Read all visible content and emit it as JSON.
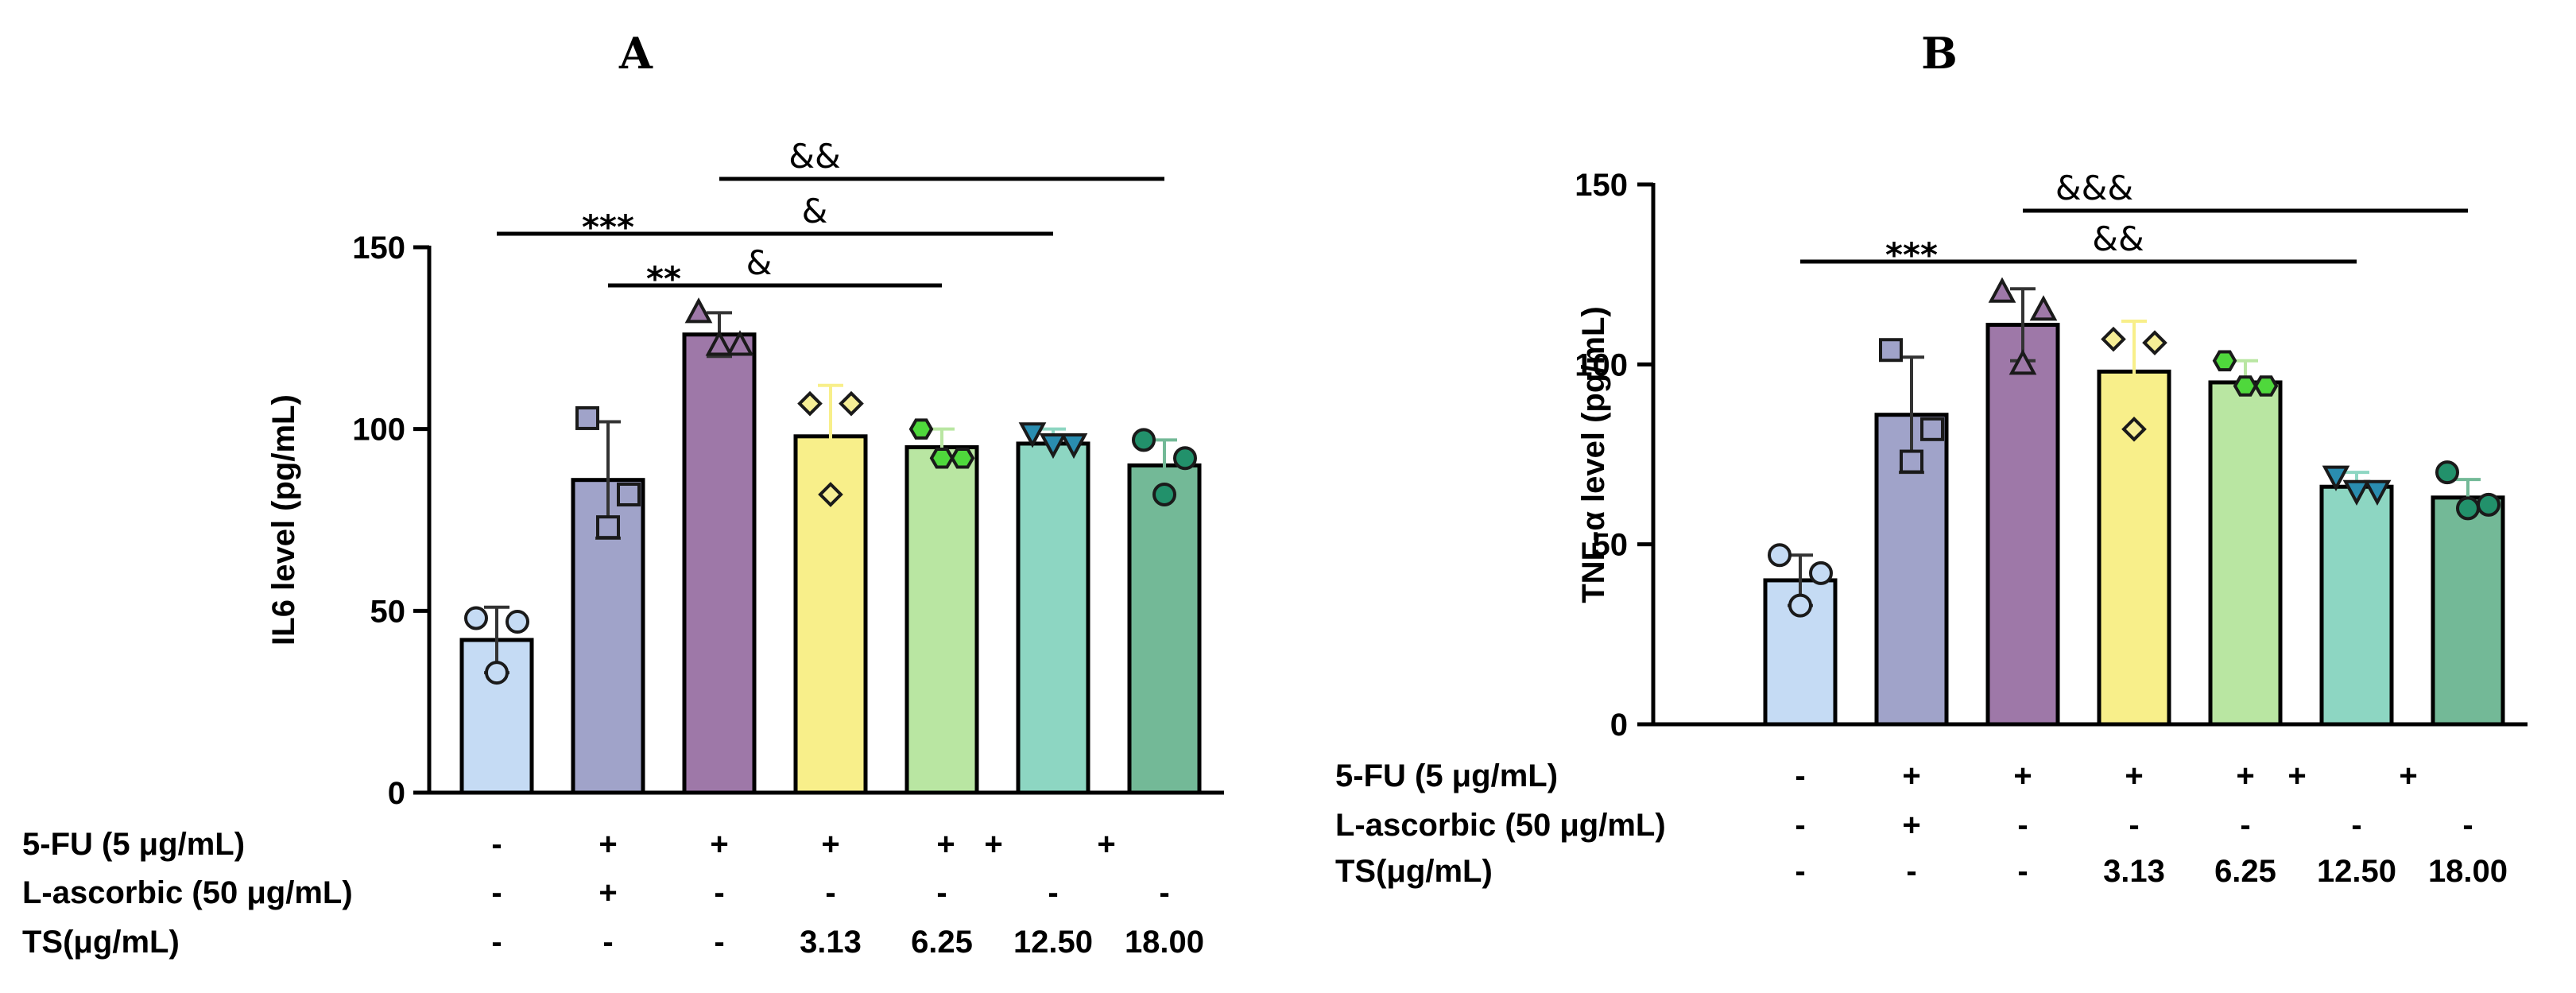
{
  "chart_data": [
    {
      "type": "bar",
      "panel": "A",
      "ylabel": "IL6 level (pg/mL)",
      "ylim": [
        0,
        150
      ],
      "yticks": [
        "0",
        "50",
        "100",
        "150"
      ],
      "groups": [
        {
          "fill": "#c5dbf4",
          "dot_fill": "#c5dbf4",
          "marker": "circle",
          "mean": 42,
          "sd": 9,
          "points": [
            48,
            47,
            33
          ]
        },
        {
          "fill": "#a0a3c9",
          "dot_fill": "#a0a3c9",
          "marker": "square",
          "mean": 86,
          "sd": 16,
          "points": [
            103,
            82,
            73
          ]
        },
        {
          "fill": "#9e78a8",
          "dot_fill": "#9e78a8",
          "marker": "triangle",
          "mean": 126,
          "sd": 6,
          "points": [
            132,
            123,
            123
          ]
        },
        {
          "fill": "#f8ef8a",
          "dot_fill": "#f6ee96",
          "marker": "diamond",
          "mean": 98,
          "sd": 14,
          "points": [
            107,
            107,
            82
          ]
        },
        {
          "fill": "#b9e6a2",
          "dot_fill": "#4fd83c",
          "marker": "hexagon",
          "mean": 95,
          "sd": 5,
          "points": [
            100,
            92,
            92
          ]
        },
        {
          "fill": "#8dd6c2",
          "dot_fill": "#2a8db0",
          "marker": "tridown",
          "mean": 96,
          "sd": 4,
          "points": [
            99,
            96,
            96
          ]
        },
        {
          "fill": "#73b997",
          "dot_fill": "#22916b",
          "marker": "circle",
          "mean": 90,
          "sd": 7,
          "points": [
            97,
            92,
            82
          ]
        }
      ],
      "significance": [
        {
          "label": "&&",
          "from": 2,
          "to": 6
        },
        {
          "label": "***",
          "from": 0,
          "to": 2
        },
        {
          "label": "&",
          "from": 2,
          "to": 5
        },
        {
          "label": "**",
          "from": 1,
          "to": 2
        },
        {
          "label": "&",
          "from": 2,
          "to": 4
        }
      ],
      "table": {
        "row_labels": [
          "5-FU (5 μg/mL)",
          "L-ascorbic (50 μg/mL)",
          "TS(μg/mL)"
        ],
        "rows": [
          [
            "-",
            "+",
            "+",
            "+",
            "+ +",
            "+",
            ""
          ],
          [
            "-",
            "+",
            "-",
            "-",
            "-",
            "-",
            "-"
          ],
          [
            "-",
            "-",
            "-",
            "3.13",
            "6.25",
            "12.50",
            "18.00"
          ]
        ]
      }
    },
    {
      "type": "bar",
      "panel": "B",
      "ylabel": "TNF-α level (pg/mL)",
      "ylim": [
        0,
        150
      ],
      "yticks": [
        "0",
        "50",
        "100",
        "150"
      ],
      "groups": [
        {
          "fill": "#c5dbf4",
          "dot_fill": "#c5dbf4",
          "marker": "circle",
          "mean": 40,
          "sd": 7,
          "points": [
            47,
            42,
            33
          ]
        },
        {
          "fill": "#a0a3c9",
          "dot_fill": "#a0a3c9",
          "marker": "square",
          "mean": 86,
          "sd": 16,
          "points": [
            104,
            82,
            73
          ]
        },
        {
          "fill": "#9e78a8",
          "dot_fill": "#9e78a8",
          "marker": "triangle",
          "mean": 111,
          "sd": 10,
          "points": [
            120,
            115,
            100
          ]
        },
        {
          "fill": "#f8ef8a",
          "dot_fill": "#f6ee96",
          "marker": "diamond",
          "mean": 98,
          "sd": 14,
          "points": [
            107,
            106,
            82
          ]
        },
        {
          "fill": "#b9e6a2",
          "dot_fill": "#4fd83c",
          "marker": "hexagon",
          "mean": 95,
          "sd": 6,
          "points": [
            101,
            94,
            94
          ]
        },
        {
          "fill": "#8dd6c2",
          "dot_fill": "#2a8db0",
          "marker": "tridown",
          "mean": 66,
          "sd": 4,
          "points": [
            69,
            65,
            65
          ]
        },
        {
          "fill": "#73b997",
          "dot_fill": "#22916b",
          "marker": "circle",
          "mean": 63,
          "sd": 5,
          "points": [
            70,
            61,
            60
          ]
        }
      ],
      "significance": [
        {
          "label": "&&&",
          "from": 2,
          "to": 6
        },
        {
          "label": "***",
          "from": 0,
          "to": 2
        },
        {
          "label": "&&",
          "from": 2,
          "to": 5
        }
      ],
      "table": {
        "row_labels": [
          "5-FU (5 μg/mL)",
          "L-ascorbic (50 μg/mL)",
          "TS(μg/mL)"
        ],
        "rows": [
          [
            "-",
            "+",
            "+",
            "+",
            "+ +",
            "+",
            ""
          ],
          [
            "-",
            "+",
            "-",
            "-",
            "-",
            "-",
            "-"
          ],
          [
            "-",
            "-",
            "-",
            "3.13",
            "6.25",
            "12.50",
            "18.00"
          ]
        ]
      }
    }
  ]
}
